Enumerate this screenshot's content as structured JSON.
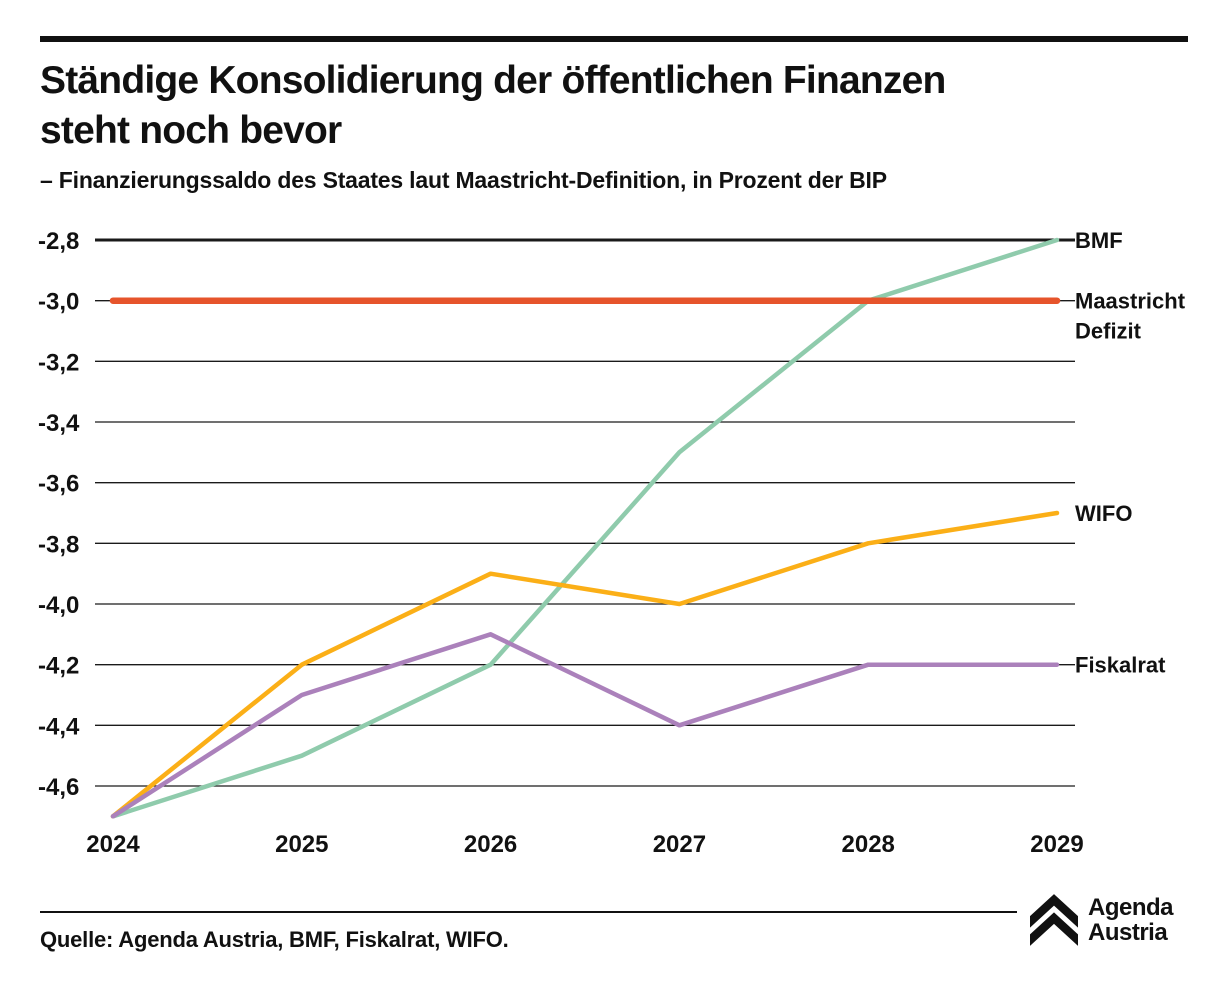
{
  "header": {
    "title_line1": "Ständige Konsolidierung der öffentlichen Finanzen",
    "title_line2": "steht noch bevor",
    "subtitle": "– Finanzierungssaldo des Staates laut Maastricht-Definition, in Prozent der BIP"
  },
  "chart_data": {
    "type": "line",
    "title": "Ständige Konsolidierung der öffentlichen Finanzen steht noch bevor",
    "subtitle": "– Finanzierungssaldo des Staates laut Maastricht-Definition, in Prozent der BIP",
    "x_labels": [
      "2024",
      "2025",
      "2026",
      "2027",
      "2028",
      "2029"
    ],
    "y_ticks": [
      -2.8,
      -3.0,
      -3.2,
      -3.4,
      -3.6,
      -3.8,
      -4.0,
      -4.2,
      -4.4,
      -4.6
    ],
    "y_tick_labels": [
      "-2,8",
      "-3,0",
      "-3,2",
      "-3,4",
      "-3,6",
      "-3,8",
      "-4,0",
      "-4,2",
      "-4,4",
      "-4,6"
    ],
    "ylim": [
      -4.75,
      -2.75
    ],
    "grid": true,
    "legend_position": "right",
    "series": [
      {
        "name": "BMF",
        "label_lines": [
          "BMF"
        ],
        "color": "#8fcbac",
        "width": 4.5,
        "z": 1,
        "values": [
          -4.7,
          -4.5,
          -4.2,
          -3.5,
          -3.0,
          -2.8
        ]
      },
      {
        "name": "Maastricht Defizit",
        "label_lines": [
          "Maastricht",
          "Defizit"
        ],
        "color": "#e6542b",
        "width": 6.5,
        "z": 4,
        "values": [
          -3.0,
          -3.0,
          -3.0,
          -3.0,
          -3.0,
          -3.0
        ]
      },
      {
        "name": "WIFO",
        "label_lines": [
          "WIFO"
        ],
        "color": "#fbaf17",
        "width": 4.5,
        "z": 2,
        "values": [
          -4.7,
          -4.2,
          -3.9,
          -4.0,
          -3.8,
          -3.7
        ]
      },
      {
        "name": "Fiskalrat",
        "label_lines": [
          "Fiskalrat"
        ],
        "color": "#ab81bb",
        "width": 4.5,
        "z": 3,
        "values": [
          -4.7,
          -4.3,
          -4.1,
          -4.4,
          -4.2,
          -4.2
        ]
      }
    ]
  },
  "footer": {
    "source": "Quelle: Agenda Austria, BMF, Fiskalrat, WIFO.",
    "logo_line1": "Agenda",
    "logo_line2": "Austria"
  },
  "colors": {
    "ink": "#111111",
    "grid": "#1a1a1a"
  }
}
